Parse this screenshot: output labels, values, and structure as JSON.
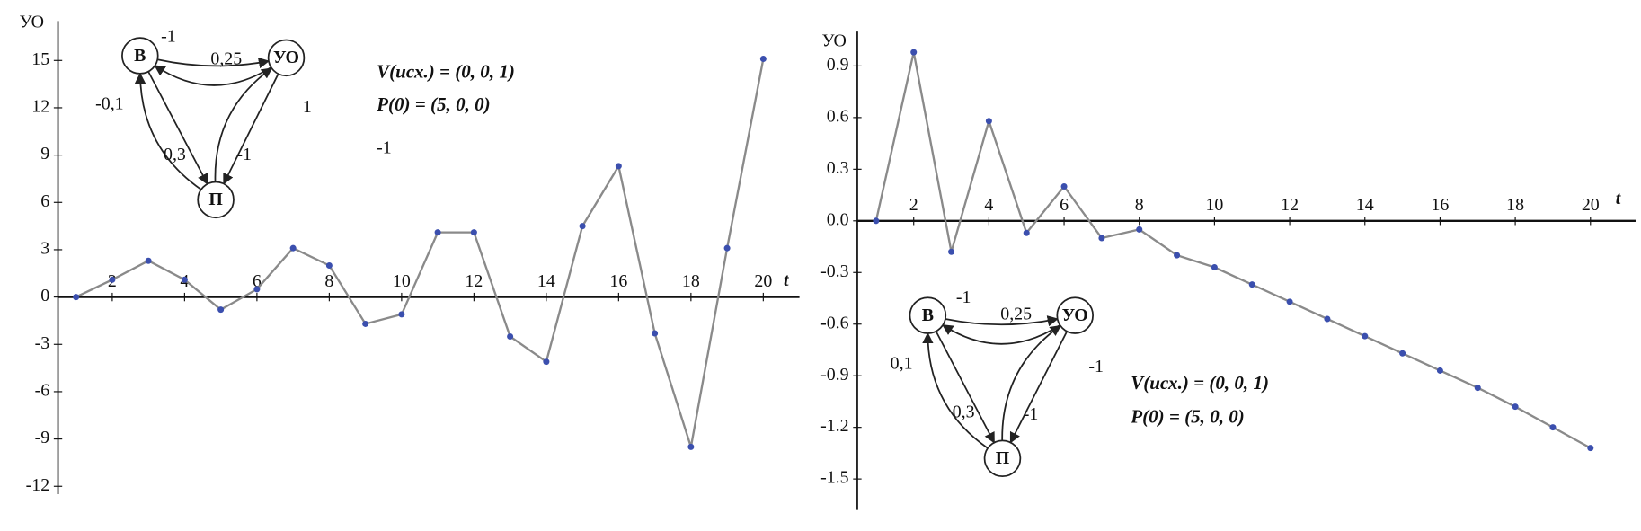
{
  "chart_data": [
    {
      "type": "line",
      "y_label": "УО",
      "x_label": "t",
      "x": [
        1,
        2,
        3,
        4,
        5,
        6,
        7,
        8,
        9,
        10,
        11,
        12,
        13,
        14,
        15,
        16,
        17,
        18,
        19,
        20
      ],
      "series": [
        {
          "color": "#8a8a8a",
          "marker_color": "#3b4fae",
          "values": [
            0,
            1.1,
            2.3,
            1.1,
            -0.8,
            0.5,
            3.1,
            2.0,
            -1.7,
            -1.1,
            4.1,
            4.1,
            -2.5,
            -4.1,
            4.5,
            8.3,
            -2.3,
            -9.5,
            3.1,
            15.1
          ]
        }
      ],
      "xlim": [
        0.5,
        21
      ],
      "ylim": [
        -12.5,
        17.5
      ],
      "xticks": [
        2,
        4,
        6,
        8,
        10,
        12,
        14,
        16,
        18,
        20
      ],
      "yticks": [
        -12,
        -9,
        -6,
        -3,
        0,
        3,
        6,
        9,
        12,
        15
      ],
      "annotations": [
        "V(исх.) = (0, 0, 1)",
        "P(0) = (5, 0, 0)",
        "-1"
      ],
      "diagram": {
        "nodes": [
          "В",
          "УО",
          "П"
        ],
        "edges": [
          "-1",
          "0,25",
          "-0,1",
          "0,3",
          "-1",
          "1"
        ]
      }
    },
    {
      "type": "line",
      "y_label": "УО",
      "x_label": "t",
      "x": [
        1,
        2,
        3,
        4,
        5,
        6,
        7,
        8,
        9,
        10,
        11,
        12,
        13,
        14,
        15,
        16,
        17,
        18,
        19,
        20
      ],
      "series": [
        {
          "color": "#8a8a8a",
          "marker_color": "#3b4fae",
          "values": [
            0,
            0.98,
            -0.18,
            0.58,
            -0.07,
            0.2,
            -0.1,
            -0.05,
            -0.2,
            -0.27,
            -0.37,
            -0.47,
            -0.57,
            -0.67,
            -0.77,
            -0.87,
            -0.97,
            -1.08,
            -1.2,
            -1.32
          ]
        }
      ],
      "xlim": [
        0.5,
        21.2
      ],
      "ylim": [
        -1.68,
        1.1
      ],
      "xticks": [
        2,
        4,
        6,
        8,
        10,
        12,
        14,
        16,
        18,
        20
      ],
      "yticks": [
        -1.5,
        -1.2,
        -0.9,
        -0.6,
        -0.3,
        {
          "value": 0,
          "label": "0.0"
        },
        0.3,
        0.6,
        0.9
      ],
      "annotations": [
        "V(исх.) = (0, 0, 1)",
        "P(0) = (5, 0, 0)"
      ],
      "diagram": {
        "nodes": [
          "В",
          "УО",
          "П"
        ],
        "edges": [
          "-1",
          "0,25",
          "0,1",
          "0,3",
          "-1",
          "-1"
        ]
      }
    }
  ]
}
